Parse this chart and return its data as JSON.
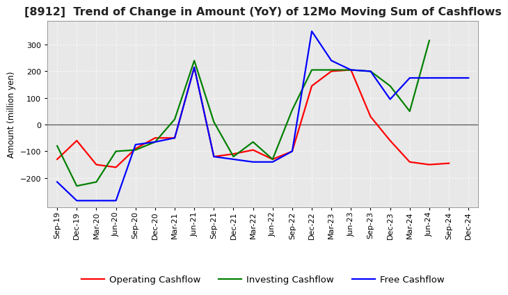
{
  "title": "[8912]  Trend of Change in Amount (YoY) of 12Mo Moving Sum of Cashflows",
  "ylabel": "Amount (million yen)",
  "x_labels": [
    "Sep-19",
    "Dec-19",
    "Mar-20",
    "Jun-20",
    "Sep-20",
    "Dec-20",
    "Mar-21",
    "Jun-21",
    "Sep-21",
    "Dec-21",
    "Mar-22",
    "Jun-22",
    "Sep-22",
    "Dec-22",
    "Mar-23",
    "Jun-23",
    "Sep-23",
    "Dec-23",
    "Mar-24",
    "Jun-24",
    "Sep-24",
    "Dec-24"
  ],
  "operating": [
    -130,
    -60,
    -150,
    -160,
    -90,
    -50,
    -50,
    215,
    -120,
    -110,
    -95,
    -130,
    -100,
    145,
    200,
    205,
    30,
    -60,
    -140,
    -150,
    -145,
    null
  ],
  "investing": [
    -80,
    -230,
    -215,
    -100,
    -95,
    -65,
    20,
    240,
    10,
    -120,
    -65,
    -130,
    55,
    205,
    205,
    205,
    200,
    145,
    50,
    315,
    null,
    null
  ],
  "free": [
    -215,
    -285,
    -285,
    -285,
    -75,
    -65,
    -50,
    215,
    -120,
    -130,
    -140,
    -140,
    -100,
    350,
    240,
    205,
    200,
    95,
    175,
    null,
    null,
    175
  ],
  "operating_color": "#ff0000",
  "investing_color": "#008000",
  "free_color": "#0000ff",
  "ylim": [
    -310,
    390
  ],
  "yticks": [
    -200,
    -100,
    0,
    100,
    200,
    300
  ],
  "background_color": "#ffffff",
  "grid_color": "#bbbbbb",
  "title_fontsize": 11.5,
  "axis_fontsize": 8,
  "legend_fontsize": 9.5,
  "linewidth": 1.6
}
